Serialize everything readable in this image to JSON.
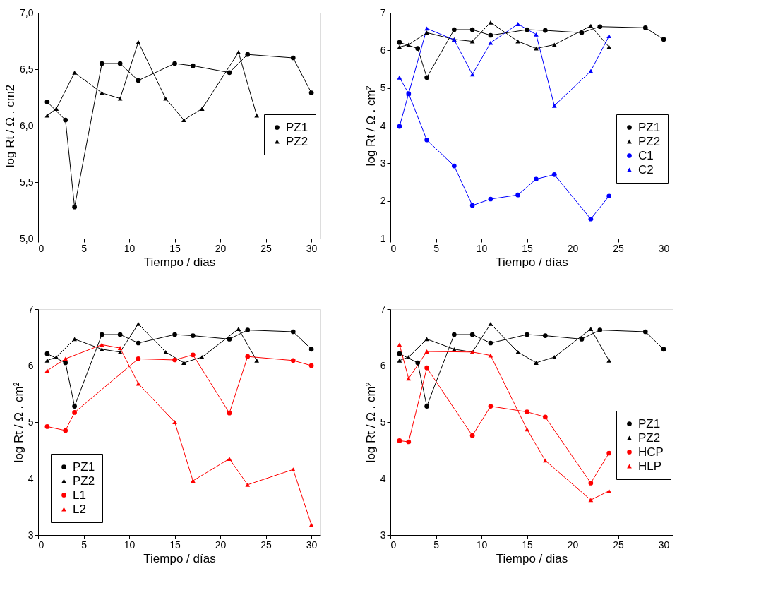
{
  "chart_data": [
    {
      "type": "line",
      "xlabel": "Tiempo / dias",
      "ylabel": "log Rt / Ω . cm2",
      "xlim": [
        0,
        31
      ],
      "xticks": [
        0,
        5,
        10,
        15,
        20,
        25,
        30
      ],
      "ylim": [
        5.0,
        7.0
      ],
      "yticks": [
        {
          "value": 5.0,
          "label": "5,0"
        },
        {
          "value": 5.5,
          "label": "5,5"
        },
        {
          "value": 6.0,
          "label": "6,0"
        },
        {
          "value": 6.5,
          "label": "6,5"
        },
        {
          "value": 7.0,
          "label": "7,0"
        }
      ],
      "legend": "right",
      "grid": false,
      "series": [
        {
          "name": "PZ1",
          "color": "#000000",
          "marker": "circle",
          "x": [
            1,
            3,
            4,
            7,
            9,
            11,
            15,
            17,
            21,
            23,
            28,
            30
          ],
          "values": [
            6.21,
            6.05,
            5.28,
            6.55,
            6.55,
            6.4,
            6.55,
            6.53,
            6.47,
            6.63,
            6.6,
            6.29
          ]
        },
        {
          "name": "PZ2",
          "color": "#000000",
          "marker": "triangle",
          "x": [
            1,
            2,
            4,
            7,
            9,
            11,
            14,
            16,
            18,
            22,
            24
          ],
          "values": [
            6.09,
            6.15,
            6.47,
            6.29,
            6.24,
            6.74,
            6.24,
            6.05,
            6.15,
            6.65,
            6.09
          ]
        }
      ]
    },
    {
      "type": "line",
      "xlabel": "Tiempo / días",
      "ylabel": "log Rt / Ω . cm²",
      "xlim": [
        0,
        31
      ],
      "xticks": [
        0,
        5,
        10,
        15,
        20,
        25,
        30
      ],
      "ylim": [
        1,
        7
      ],
      "yticks": [
        1,
        2,
        3,
        4,
        5,
        6,
        7
      ],
      "legend": "right",
      "grid": false,
      "series": [
        {
          "name": "PZ1",
          "color": "#000000",
          "marker": "circle",
          "x": [
            1,
            3,
            4,
            7,
            9,
            11,
            15,
            17,
            21,
            23,
            28,
            30
          ],
          "values": [
            6.21,
            6.05,
            5.28,
            6.55,
            6.55,
            6.4,
            6.55,
            6.53,
            6.47,
            6.63,
            6.6,
            6.29
          ]
        },
        {
          "name": "PZ2",
          "color": "#000000",
          "marker": "triangle",
          "x": [
            1,
            2,
            4,
            7,
            9,
            11,
            14,
            16,
            18,
            22,
            24
          ],
          "values": [
            6.09,
            6.15,
            6.47,
            6.29,
            6.24,
            6.74,
            6.24,
            6.05,
            6.15,
            6.65,
            6.09
          ]
        },
        {
          "name": "C1",
          "color": "#0000ff",
          "marker": "circle",
          "x": [
            1,
            2,
            4,
            7,
            9,
            11,
            14,
            16,
            18,
            22,
            24
          ],
          "values": [
            3.98,
            4.85,
            3.62,
            2.93,
            1.88,
            2.05,
            2.16,
            2.58,
            2.7,
            1.52,
            2.13
          ]
        },
        {
          "name": "C2",
          "color": "#0000ff",
          "marker": "triangle",
          "x": [
            1,
            2,
            4,
            7,
            9,
            11,
            14,
            16,
            18,
            22,
            24
          ],
          "values": [
            5.28,
            4.85,
            6.58,
            6.28,
            5.36,
            6.2,
            6.7,
            6.42,
            4.53,
            5.45,
            6.38
          ]
        }
      ]
    },
    {
      "type": "line",
      "xlabel": "Tiempo / días",
      "ylabel": "log Rt / Ω . cm²",
      "xlim": [
        0,
        31
      ],
      "xticks": [
        0,
        5,
        10,
        15,
        20,
        25,
        30
      ],
      "ylim": [
        3,
        7
      ],
      "yticks": [
        3,
        4,
        5,
        6,
        7
      ],
      "legend": "bottom left",
      "grid": false,
      "series": [
        {
          "name": "PZ1",
          "color": "#000000",
          "marker": "circle",
          "x": [
            1,
            3,
            4,
            7,
            9,
            11,
            15,
            17,
            21,
            23,
            28,
            30
          ],
          "values": [
            6.21,
            6.05,
            5.28,
            6.55,
            6.55,
            6.4,
            6.55,
            6.53,
            6.47,
            6.63,
            6.6,
            6.29
          ]
        },
        {
          "name": "PZ2",
          "color": "#000000",
          "marker": "triangle",
          "x": [
            1,
            2,
            4,
            7,
            9,
            11,
            14,
            16,
            18,
            22,
            24
          ],
          "values": [
            6.09,
            6.15,
            6.47,
            6.29,
            6.24,
            6.74,
            6.24,
            6.05,
            6.15,
            6.65,
            6.09
          ]
        },
        {
          "name": "L1",
          "color": "#ff0000",
          "marker": "circle",
          "x": [
            1,
            3,
            4,
            11,
            15,
            17,
            21,
            23,
            28,
            30
          ],
          "values": [
            4.92,
            4.85,
            5.17,
            6.12,
            6.1,
            6.19,
            5.16,
            6.16,
            6.09,
            6.0
          ]
        },
        {
          "name": "L2",
          "color": "#ff0000",
          "marker": "triangle",
          "x": [
            1,
            3,
            7,
            9,
            11,
            15,
            17,
            21,
            23,
            28,
            30
          ],
          "values": [
            5.91,
            6.12,
            6.37,
            6.31,
            5.68,
            5.0,
            3.96,
            4.35,
            3.89,
            4.16,
            3.18
          ]
        }
      ]
    },
    {
      "type": "line",
      "xlabel": "Tiempo / dias",
      "ylabel": "log Rt / Ω . cm²",
      "xlim": [
        0,
        31
      ],
      "xticks": [
        0,
        5,
        10,
        15,
        20,
        25,
        30
      ],
      "ylim": [
        3,
        7
      ],
      "yticks": [
        3,
        4,
        5,
        6,
        7
      ],
      "legend": "right",
      "grid": false,
      "series": [
        {
          "name": "PZ1",
          "color": "#000000",
          "marker": "circle",
          "x": [
            1,
            3,
            4,
            7,
            9,
            11,
            15,
            17,
            21,
            23,
            28,
            30
          ],
          "values": [
            6.21,
            6.05,
            5.28,
            6.55,
            6.55,
            6.4,
            6.55,
            6.53,
            6.47,
            6.63,
            6.6,
            6.29
          ]
        },
        {
          "name": "PZ2",
          "color": "#000000",
          "marker": "triangle",
          "x": [
            1,
            2,
            4,
            7,
            9,
            11,
            14,
            16,
            18,
            22,
            24
          ],
          "values": [
            6.09,
            6.15,
            6.47,
            6.29,
            6.24,
            6.74,
            6.24,
            6.05,
            6.15,
            6.65,
            6.09
          ]
        },
        {
          "name": "HCP",
          "color": "#ff0000",
          "marker": "circle",
          "x": [
            1,
            2,
            4,
            9,
            11,
            15,
            17,
            22,
            24
          ],
          "values": [
            4.67,
            4.65,
            5.96,
            4.76,
            5.28,
            5.18,
            5.09,
            3.92,
            4.45
          ]
        },
        {
          "name": "HLP",
          "color": "#ff0000",
          "marker": "triangle",
          "x": [
            1,
            2,
            4,
            9,
            11,
            15,
            17,
            22,
            24
          ],
          "values": [
            6.37,
            5.77,
            6.25,
            6.24,
            6.18,
            4.87,
            4.32,
            3.62,
            3.78
          ]
        }
      ]
    }
  ]
}
